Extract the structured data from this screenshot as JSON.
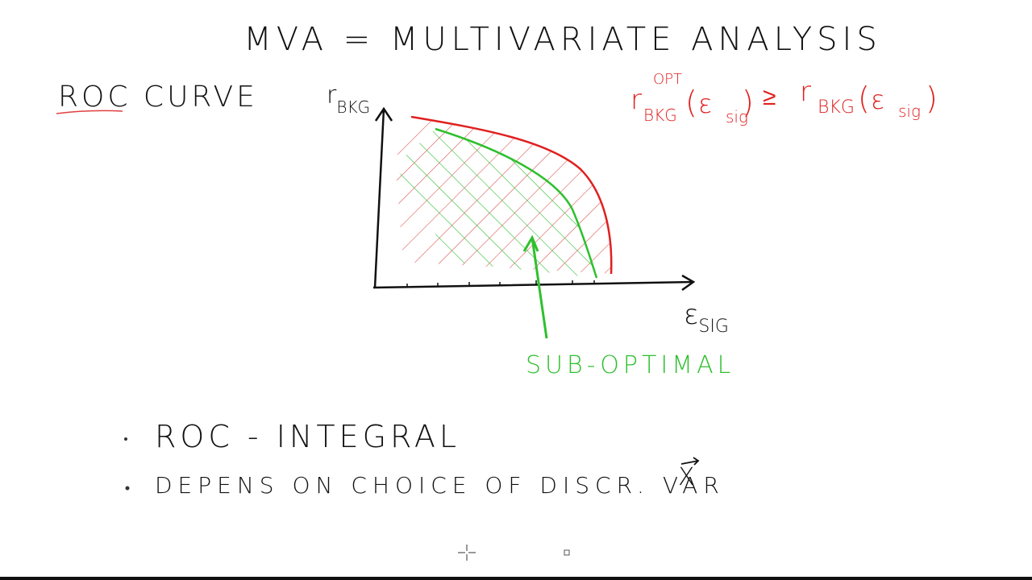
{
  "title": "MVA = MULTIVARIATE ANALYSIS",
  "heading": "ROC CURVE",
  "y_axis": {
    "base": "r",
    "sub": "BKG"
  },
  "x_axis": {
    "base": "ε",
    "sub": "SIG"
  },
  "formula": [
    "r",
    "OPT",
    "BKG",
    "(",
    "ε",
    "sig",
    ")",
    "≥",
    "r",
    "BKG",
    "(",
    "ε",
    "sig",
    ")"
  ],
  "annotation": "SUB-OPTIMAL",
  "bullets": [
    "ROC - INTEGRAL",
    "DEPENS ON CHOICE OF DISCR. VAR",
    "X"
  ]
}
